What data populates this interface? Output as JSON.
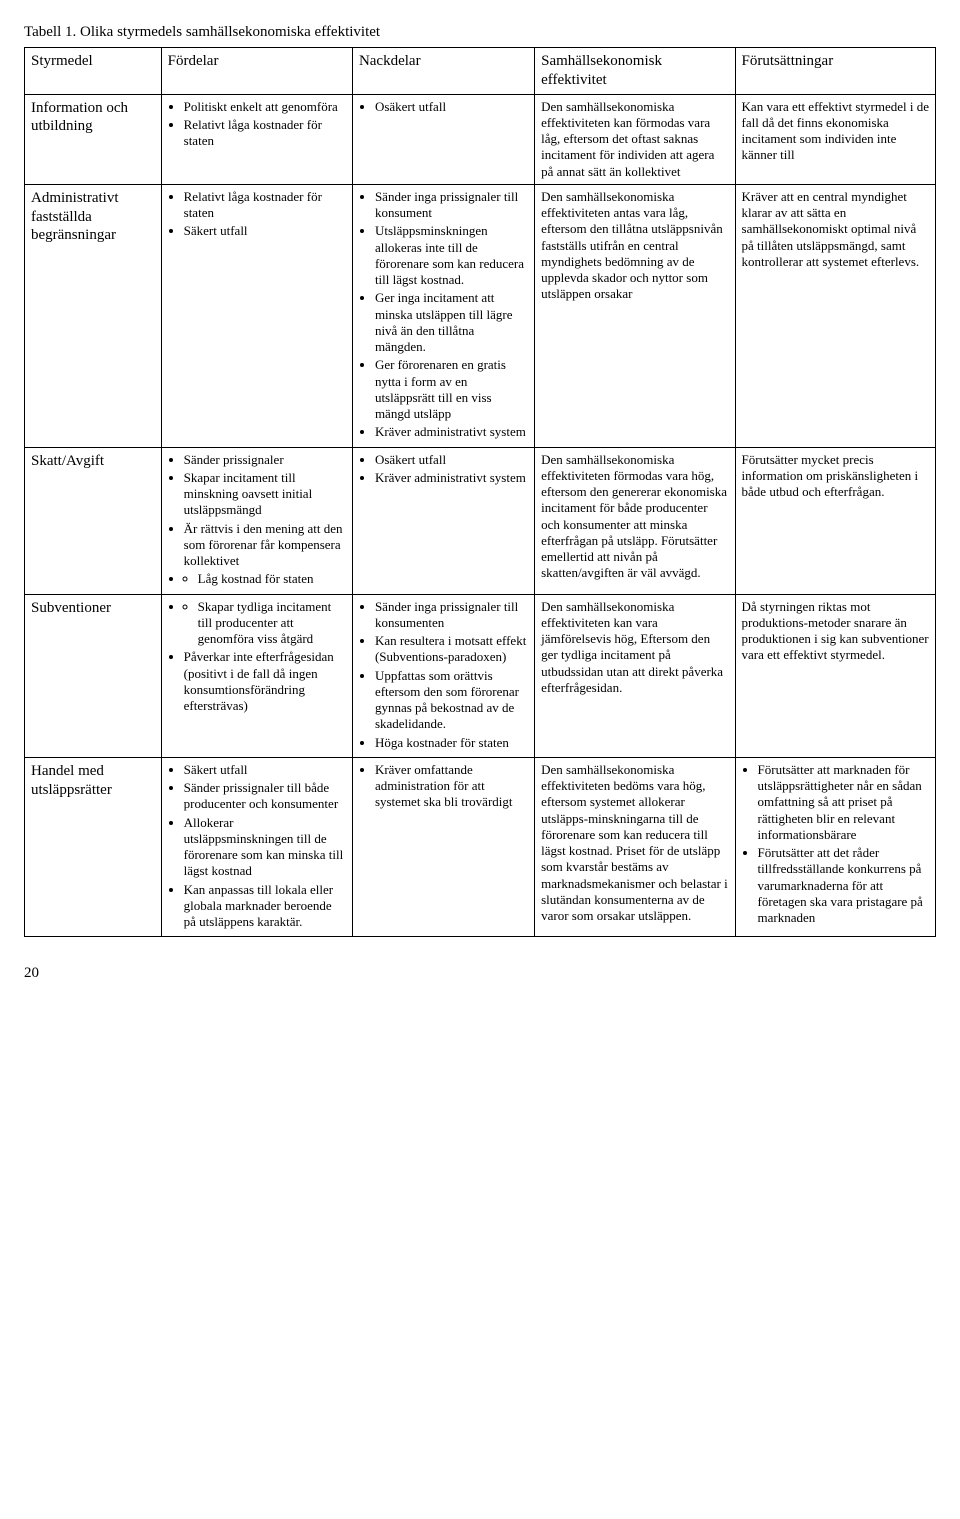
{
  "caption": "Tabell 1. Olika styrmedels samhällsekonomiska effektivitet",
  "headers": [
    "Styrmedel",
    "Fördelar",
    "Nackdelar",
    "Samhällsekonomisk effektivitet",
    "Förutsättningar"
  ],
  "rows": [
    {
      "name": "Information och utbildning",
      "fordelar": [
        "Politiskt enkelt att genomföra",
        "Relativt låga kostnader för staten"
      ],
      "nackdelar": [
        "Osäkert utfall"
      ],
      "effektivitet": "Den samhällsekonomiska effektiviteten kan förmodas vara låg, eftersom det oftast saknas incitament för individen att agera på annat sätt än kollektivet",
      "forutsattningar": "Kan vara ett effektivt styrmedel i de fall då det finns ekonomiska incitament som individen inte känner till"
    },
    {
      "name": "Administrativt fastställda begränsningar",
      "fordelar": [
        "Relativt låga kostnader för staten",
        "Säkert utfall"
      ],
      "nackdelar": [
        "Sänder inga prissignaler  till konsument",
        "Utsläppsminskningen allokeras inte till de förorenare som kan reducera till lägst kostnad.",
        "Ger inga incitament att minska utsläppen till lägre nivå än den tillåtna mängden.",
        "Ger förorenaren en gratis nytta i form av en utsläppsrätt till en viss mängd utsläpp",
        "Kräver administrativt system"
      ],
      "effektivitet": "Den samhällsekonomiska effektiviteten antas vara låg, eftersom den tillåtna utsläppsnivån fastställs utifrån en central myndighets bedömning av de upplevda skador och nyttor som utsläppen orsakar",
      "forutsattningar": "Kräver att en central myndighet klarar av att sätta en samhällsekonomiskt optimal nivå på tillåten utsläppsmängd, samt kontrollerar att systemet efterlevs."
    },
    {
      "name": "Skatt/Avgift",
      "fordelar": [
        "Sänder prissignaler",
        "Skapar incitament till minskning oavsett initial utsläppsmängd",
        "Är rättvis i den mening att den som förorenar får kompensera kollektivet"
      ],
      "fordelar_sub": [
        "Låg kostnad för staten"
      ],
      "nackdelar": [
        "Osäkert utfall",
        "Kräver administrativt system"
      ],
      "effektivitet": "Den samhällsekonomiska effektiviteten förmodas vara hög, eftersom den genererar ekonomiska incitament för både producenter och konsumenter att minska efterfrågan på utsläpp. Förutsätter emellertid att nivån på skatten/avgiften är väl avvägd.",
      "forutsattningar": "Förutsätter mycket precis information om priskänsligheten i både utbud och efterfrågan."
    },
    {
      "name": "Subventioner",
      "fordelar_sub_first": [
        "Skapar tydliga incitament till producenter att genomföra viss åtgärd"
      ],
      "fordelar": [
        "Påverkar inte efterfrågesidan (positivt i de fall då ingen konsumtionsförändring eftersträvas)"
      ],
      "nackdelar": [
        "Sänder inga prissignaler till konsumenten",
        "Kan resultera i motsatt effekt (Subventions-paradoxen)",
        "Uppfattas som orättvis eftersom den som förorenar gynnas på bekostnad av de skadelidande.",
        "Höga kostnader för staten"
      ],
      "effektivitet": "Den samhällsekonomiska effektiviteten kan vara jämförelsevis hög, Eftersom den ger tydliga incitament på utbudssidan utan att direkt påverka efterfrågesidan.",
      "forutsattningar": "Då styrningen riktas mot produktions-metoder snarare än produktionen i sig kan subventioner vara ett effektivt styrmedel."
    },
    {
      "name": "Handel med utsläppsrätter",
      "fordelar": [
        "Säkert utfall",
        "Sänder prissignaler till både producenter och konsumenter",
        "Allokerar utsläppsminskningen till de förorenare som kan minska till lägst kostnad",
        "Kan anpassas till lokala eller globala marknader beroende på utsläppens karaktär."
      ],
      "nackdelar": [
        "Kräver omfattande administration för att systemet ska bli trovärdigt"
      ],
      "effektivitet": "Den samhällsekonomiska effektiviteten bedöms vara hög, eftersom systemet allokerar utsläpps-minskningarna till de förorenare som kan reducera till lägst kostnad. Priset för de utsläpp som kvarstår bestäms av marknadsmekanismer och belastar i slutändan konsumenterna av de varor som orsakar utsläppen.",
      "forutsattningar_list": [
        "Förutsätter att marknaden för utsläppsrättigheter når en sådan omfattning så att priset på rättigheten blir en relevant informationsbärare",
        "Förutsätter att det råder tillfredsställande konkurrens på varumarknaderna för att företagen ska vara pristagare på marknaden"
      ]
    }
  ],
  "page_number": "20"
}
